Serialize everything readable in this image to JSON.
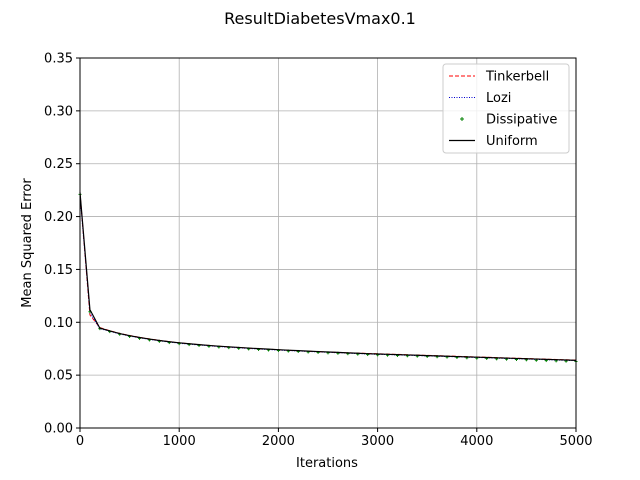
{
  "chart_data": {
    "type": "line",
    "title": "ResultDiabetesVmax0.1",
    "xlabel": "Iterations",
    "ylabel": "Mean Squared Error",
    "xlim": [
      0,
      5000
    ],
    "ylim": [
      0,
      0.35
    ],
    "xticks": [
      0,
      1000,
      2000,
      3000,
      4000,
      5000
    ],
    "xtick_labels": [
      "0",
      "1000",
      "2000",
      "3000",
      "4000",
      "5000"
    ],
    "yticks": [
      0,
      0.05,
      0.1,
      0.15,
      0.2,
      0.25,
      0.3,
      0.35
    ],
    "ytick_labels": [
      "0.00",
      "0.05",
      "0.10",
      "0.15",
      "0.20",
      "0.25",
      "0.30",
      "0.35"
    ],
    "grid": true,
    "legend_position": "top-right",
    "x": [
      0,
      100,
      200,
      300,
      400,
      500,
      600,
      700,
      800,
      900,
      1000,
      1100,
      1200,
      1300,
      1400,
      1500,
      1600,
      1700,
      1800,
      1900,
      2000,
      2100,
      2200,
      2300,
      2400,
      2500,
      2600,
      2700,
      2800,
      2900,
      3000,
      3100,
      3200,
      3300,
      3400,
      3500,
      3600,
      3700,
      3800,
      3900,
      4000,
      4100,
      4200,
      4300,
      4400,
      4500,
      4600,
      4700,
      4800,
      4900,
      5000
    ],
    "series": [
      {
        "name": "Tinkerbell",
        "color": "#ff0000",
        "style": "dashed",
        "values": [
          0.222,
          0.107,
          0.095,
          0.092,
          0.0895,
          0.0875,
          0.0858,
          0.0843,
          0.0829,
          0.0817,
          0.0806,
          0.0797,
          0.0788,
          0.078,
          0.0773,
          0.0767,
          0.0761,
          0.0755,
          0.075,
          0.0745,
          0.074,
          0.0735,
          0.073,
          0.0726,
          0.0722,
          0.0718,
          0.0714,
          0.0711,
          0.0708,
          0.0705,
          0.0702,
          0.0699,
          0.0696,
          0.0693,
          0.069,
          0.0687,
          0.0684,
          0.0681,
          0.0678,
          0.0675,
          0.0672,
          0.0669,
          0.0666,
          0.0663,
          0.066,
          0.0657,
          0.0654,
          0.0651,
          0.0648,
          0.0645,
          0.0642
        ]
      },
      {
        "name": "Lozi",
        "color": "#0000cc",
        "style": "dotted",
        "values": [
          0.22,
          0.109,
          0.094,
          0.0915,
          0.089,
          0.087,
          0.0853,
          0.0838,
          0.0825,
          0.0813,
          0.0802,
          0.0793,
          0.0785,
          0.0777,
          0.077,
          0.0764,
          0.0758,
          0.0752,
          0.0747,
          0.0742,
          0.0737,
          0.0732,
          0.0728,
          0.0724,
          0.072,
          0.0716,
          0.0712,
          0.0708,
          0.0704,
          0.07,
          0.0697,
          0.0694,
          0.0691,
          0.0688,
          0.0685,
          0.0682,
          0.0679,
          0.0676,
          0.0673,
          0.067,
          0.0667,
          0.0664,
          0.0661,
          0.0658,
          0.0655,
          0.0652,
          0.0649,
          0.0646,
          0.0643,
          0.064,
          0.0637
        ]
      },
      {
        "name": "Dissipative",
        "color": "#008000",
        "style": "markers",
        "values": [
          0.221,
          0.11,
          0.094,
          0.0912,
          0.0887,
          0.0866,
          0.0848,
          0.0833,
          0.082,
          0.0808,
          0.0798,
          0.0789,
          0.0781,
          0.0773,
          0.0766,
          0.076,
          0.0754,
          0.0748,
          0.0743,
          0.0738,
          0.0733,
          0.0728,
          0.0724,
          0.0719,
          0.0715,
          0.0711,
          0.0707,
          0.0703,
          0.0699,
          0.0695,
          0.0692,
          0.0689,
          0.0686,
          0.0683,
          0.068,
          0.0677,
          0.0674,
          0.0671,
          0.0667,
          0.0664,
          0.0661,
          0.0658,
          0.0654,
          0.0651,
          0.0648,
          0.0645,
          0.0641,
          0.0638,
          0.0635,
          0.0632,
          0.0629
        ]
      },
      {
        "name": "Uniform",
        "color": "#000000",
        "style": "solid",
        "values": [
          0.223,
          0.112,
          0.0945,
          0.0918,
          0.0893,
          0.0873,
          0.0856,
          0.0841,
          0.0828,
          0.0816,
          0.0806,
          0.0797,
          0.0789,
          0.0781,
          0.0774,
          0.0768,
          0.0762,
          0.0756,
          0.0751,
          0.0746,
          0.0741,
          0.0736,
          0.0732,
          0.0727,
          0.0723,
          0.0719,
          0.0715,
          0.0711,
          0.0707,
          0.0703,
          0.07,
          0.0697,
          0.0694,
          0.0691,
          0.0688,
          0.0685,
          0.0682,
          0.0679,
          0.0676,
          0.0673,
          0.067,
          0.0667,
          0.0664,
          0.0661,
          0.0658,
          0.0655,
          0.0652,
          0.0649,
          0.0646,
          0.0643,
          0.064
        ]
      }
    ]
  }
}
